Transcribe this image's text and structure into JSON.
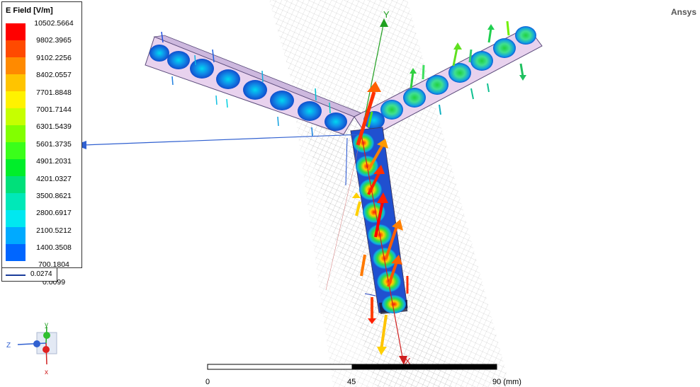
{
  "brand": "Ansys",
  "legend": {
    "title": "E Field [V/m]",
    "values": [
      "10502.5664",
      "9802.3965",
      "9102.2256",
      "8402.0557",
      "7701.8848",
      "7001.7144",
      "6301.5439",
      "5601.3735",
      "4901.2031",
      "4201.0327",
      "3500.8621",
      "2800.6917",
      "2100.5212",
      "1400.3508",
      "700.1804",
      "0.0099"
    ],
    "colors": [
      "#ff0000",
      "#ff4a00",
      "#ff8a00",
      "#ffc400",
      "#fff200",
      "#c6ff00",
      "#82ff00",
      "#3aff1a",
      "#00ee2a",
      "#00e07a",
      "#00e8b8",
      "#00e8f0",
      "#00aaff",
      "#0066ff",
      "#0033ff",
      "#0000ff"
    ],
    "secondary_value": "0.0274"
  },
  "triad": {
    "x_label": "x",
    "y_label": "y",
    "z_label": "Z"
  },
  "axes": {
    "y_label": "Y",
    "x_label": "X"
  },
  "scale": {
    "labels": [
      "0",
      "45",
      "90 (mm)"
    ]
  }
}
